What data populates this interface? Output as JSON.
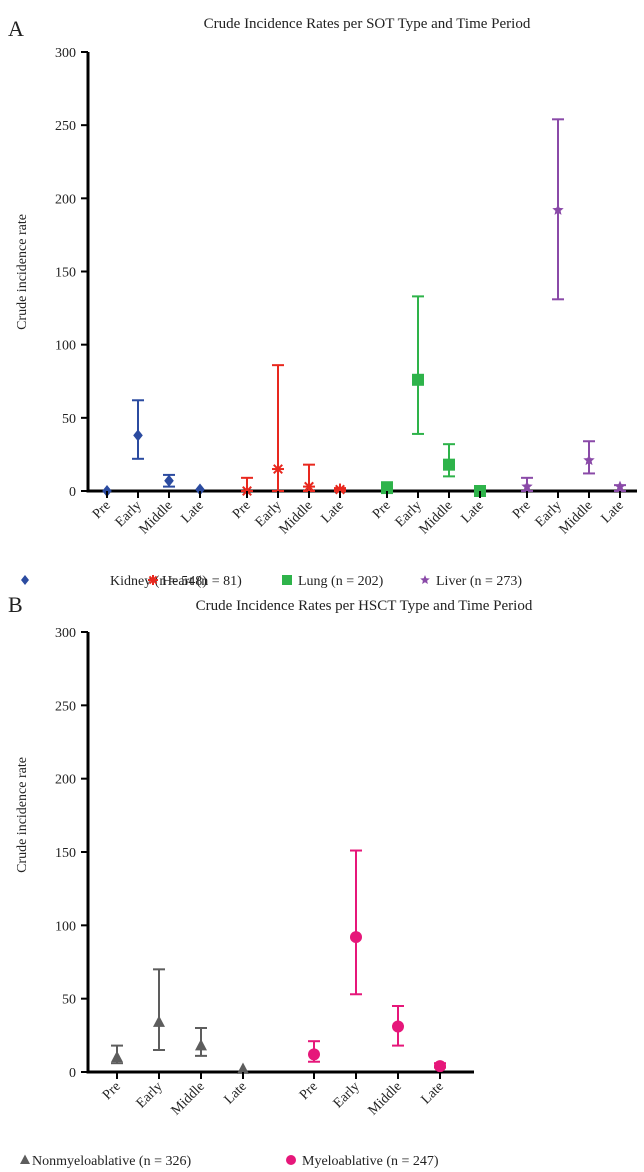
{
  "chart_data": [
    {
      "type": "scatter",
      "panel": "A",
      "title": "Crude Incidence Rates per SOT Type and Time Period",
      "ylabel": "Crude incidence rate",
      "xlabel": "",
      "ylim": [
        0,
        300
      ],
      "yticks": [
        0,
        50,
        100,
        150,
        200,
        250,
        300
      ],
      "grid": false,
      "legend_position": "bottom",
      "categories": [
        "Pre",
        "Early",
        "Middle",
        "Late"
      ],
      "series": [
        {
          "name": "Kidney (n = 548)",
          "color": "#2b4ba0",
          "marker": "diamond",
          "points": [
            {
              "x": "Pre",
              "y": 0,
              "low": null,
              "high": null
            },
            {
              "x": "Early",
              "y": 38,
              "low": 22,
              "high": 62
            },
            {
              "x": "Middle",
              "y": 7,
              "low": 3,
              "high": 11
            },
            {
              "x": "Late",
              "y": 1,
              "low": null,
              "high": null
            }
          ]
        },
        {
          "name": "Heart (n = 81)",
          "color": "#e8281e",
          "marker": "asterisk",
          "points": [
            {
              "x": "Pre",
              "y": 0,
              "low": 0,
              "high": 9
            },
            {
              "x": "Early",
              "y": 15,
              "low": 0,
              "high": 86
            },
            {
              "x": "Middle",
              "y": 3,
              "low": 0,
              "high": 18
            },
            {
              "x": "Late",
              "y": 1,
              "low": 0,
              "high": 2
            }
          ]
        },
        {
          "name": "Lung (n = 202)",
          "color": "#2eb34a",
          "marker": "square",
          "points": [
            {
              "x": "Pre",
              "y": 2,
              "low": 0,
              "high": 6
            },
            {
              "x": "Early",
              "y": 76,
              "low": 39,
              "high": 133
            },
            {
              "x": "Middle",
              "y": 18,
              "low": 10,
              "high": 32
            },
            {
              "x": "Late",
              "y": 0,
              "low": null,
              "high": null
            }
          ]
        },
        {
          "name": "Liver (n = 273)",
          "color": "#8a4aa8",
          "marker": "star",
          "points": [
            {
              "x": "Pre",
              "y": 3,
              "low": 0,
              "high": 9
            },
            {
              "x": "Early",
              "y": 192,
              "low": 131,
              "high": 254
            },
            {
              "x": "Middle",
              "y": 21,
              "low": 12,
              "high": 34
            },
            {
              "x": "Late",
              "y": 3,
              "low": 0,
              "high": 4
            }
          ]
        }
      ]
    },
    {
      "type": "scatter",
      "panel": "B",
      "title": "Crude Incidence Rates per HSCT Type and Time Period",
      "ylabel": "Crude incidence rate",
      "xlabel": "",
      "ylim": [
        0,
        300
      ],
      "yticks": [
        0,
        50,
        100,
        150,
        200,
        250,
        300
      ],
      "grid": false,
      "legend_position": "bottom",
      "categories": [
        "Pre",
        "Early",
        "Middle",
        "Late"
      ],
      "series": [
        {
          "name": "Nonmyeloablative (n = 326)",
          "color": "#5d5d5d",
          "marker": "triangle",
          "points": [
            {
              "x": "Pre",
              "y": 10,
              "low": 6,
              "high": 18
            },
            {
              "x": "Early",
              "y": 34,
              "low": 15,
              "high": 70
            },
            {
              "x": "Middle",
              "y": 18,
              "low": 11,
              "high": 30
            },
            {
              "x": "Late",
              "y": 2,
              "low": null,
              "high": null
            }
          ]
        },
        {
          "name": "Myeloablative (n = 247)",
          "color": "#e6177a",
          "marker": "circle",
          "points": [
            {
              "x": "Pre",
              "y": 12,
              "low": 7,
              "high": 21
            },
            {
              "x": "Early",
              "y": 92,
              "low": 53,
              "high": 151
            },
            {
              "x": "Middle",
              "y": 31,
              "low": 18,
              "high": 45
            },
            {
              "x": "Late",
              "y": 4,
              "low": 3,
              "high": 6
            }
          ]
        }
      ]
    }
  ]
}
